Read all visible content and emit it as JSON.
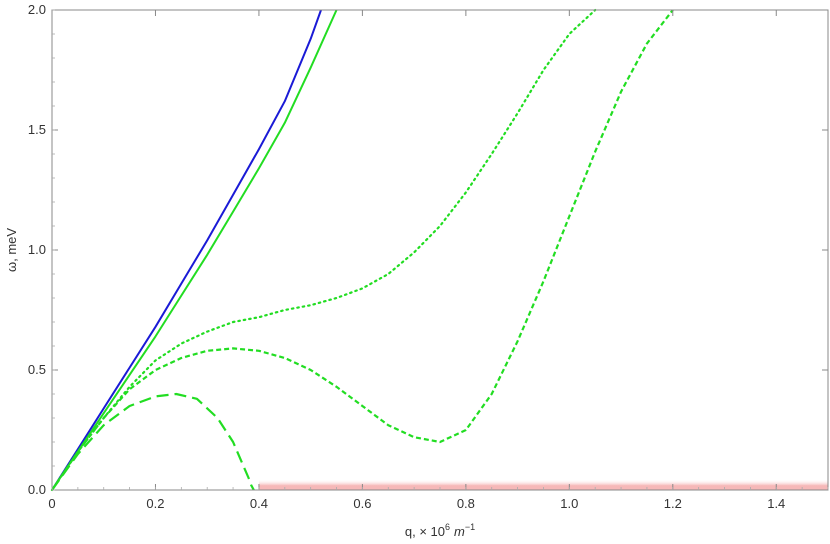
{
  "chart_data": {
    "type": "line",
    "title": "",
    "xlabel_text": "q, × 10",
    "xlabel_exp": "6",
    "xlabel_unit": "m",
    "xlabel_unit_exp": "−1",
    "ylabel": "ω, meV",
    "xlim": [
      0,
      1.5
    ],
    "ylim": [
      0,
      2.0
    ],
    "xticks": [
      "0",
      "0.2",
      "0.4",
      "0.6",
      "0.8",
      "1.0",
      "1.2",
      "1.4"
    ],
    "xtick_values": [
      0,
      0.2,
      0.4,
      0.6,
      0.8,
      1.0,
      1.2,
      1.4
    ],
    "yticks": [
      "0.0",
      "0.5",
      "1.0",
      "1.5",
      "2.0"
    ],
    "ytick_values": [
      0,
      0.5,
      1.0,
      1.5,
      2.0
    ],
    "grid": false,
    "shaded_band": {
      "x": [
        0.4,
        1.5
      ],
      "y": [
        0,
        0.02
      ],
      "color": "#f6b8b8"
    },
    "series": [
      {
        "color": "#1a1ad6",
        "style": "solid",
        "x": [
          0,
          0.05,
          0.1,
          0.15,
          0.2,
          0.25,
          0.3,
          0.35,
          0.4,
          0.45,
          0.5,
          0.52
        ],
        "y": [
          0,
          0.17,
          0.34,
          0.51,
          0.68,
          0.86,
          1.04,
          1.23,
          1.42,
          1.62,
          1.88,
          2.0
        ]
      },
      {
        "color": "#22dd22",
        "style": "solid",
        "x": [
          0,
          0.05,
          0.1,
          0.15,
          0.2,
          0.25,
          0.3,
          0.35,
          0.4,
          0.45,
          0.5,
          0.55
        ],
        "y": [
          0,
          0.16,
          0.32,
          0.48,
          0.64,
          0.81,
          0.98,
          1.16,
          1.34,
          1.53,
          1.76,
          2.0
        ]
      },
      {
        "color": "#22dd22",
        "style": "dotted",
        "x": [
          0,
          0.05,
          0.1,
          0.15,
          0.2,
          0.25,
          0.3,
          0.35,
          0.4,
          0.45,
          0.5,
          0.55,
          0.6,
          0.65,
          0.7,
          0.75,
          0.8,
          0.85,
          0.9,
          0.95,
          1.0,
          1.05
        ],
        "y": [
          0,
          0.16,
          0.3,
          0.43,
          0.54,
          0.61,
          0.66,
          0.7,
          0.72,
          0.75,
          0.77,
          0.8,
          0.84,
          0.9,
          0.99,
          1.1,
          1.24,
          1.4,
          1.57,
          1.75,
          1.9,
          2.0
        ]
      },
      {
        "color": "#22dd22",
        "style": "dashed",
        "x": [
          0,
          0.05,
          0.1,
          0.15,
          0.2,
          0.25,
          0.3,
          0.35,
          0.4,
          0.45,
          0.5,
          0.55,
          0.6,
          0.65,
          0.7,
          0.75,
          0.8,
          0.85,
          0.9,
          0.95,
          1.0,
          1.05,
          1.1,
          1.15,
          1.2
        ],
        "y": [
          0,
          0.16,
          0.3,
          0.42,
          0.5,
          0.55,
          0.58,
          0.59,
          0.58,
          0.55,
          0.5,
          0.43,
          0.35,
          0.27,
          0.22,
          0.2,
          0.25,
          0.4,
          0.62,
          0.87,
          1.14,
          1.41,
          1.66,
          1.86,
          2.0
        ]
      },
      {
        "color": "#22dd22",
        "style": "longdash",
        "x": [
          0,
          0.05,
          0.1,
          0.15,
          0.2,
          0.24,
          0.28,
          0.32,
          0.35,
          0.37,
          0.38,
          0.385,
          0.39
        ],
        "y": [
          0,
          0.15,
          0.27,
          0.35,
          0.39,
          0.4,
          0.38,
          0.3,
          0.2,
          0.1,
          0.05,
          0.02,
          0.0
        ]
      }
    ]
  }
}
